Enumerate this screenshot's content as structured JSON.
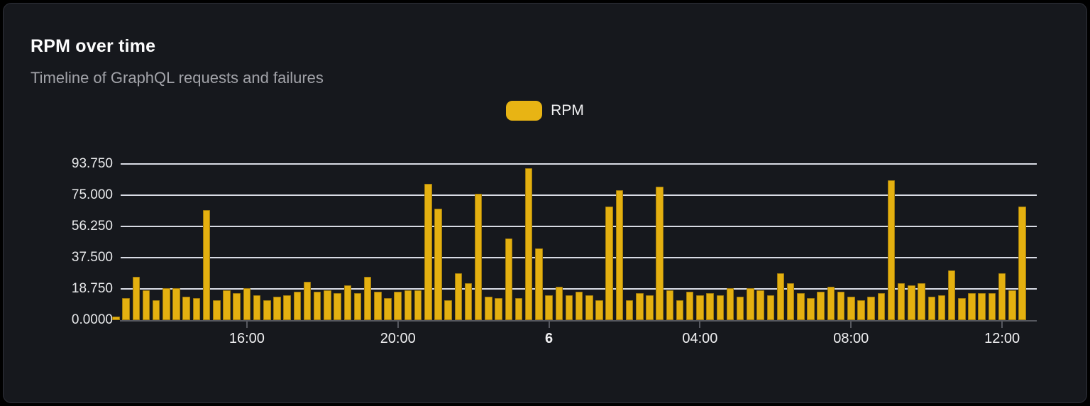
{
  "header": {
    "title": "RPM over time",
    "subtitle": "Timeline of GraphQL requests and failures"
  },
  "legend": {
    "items": [
      {
        "label": "RPM",
        "color": "#E8B414"
      }
    ]
  },
  "colors": {
    "page_bg": "#000000",
    "card_bg": "#16181D",
    "card_border": "#2E3039",
    "bar": "#E4B010",
    "gridline": "#D9DCE5",
    "axis": "#56585F",
    "title_text": "#FCFCFD",
    "subtitle_text": "#A2A3A9",
    "tick_text": "#E9EAEC"
  },
  "chart_data": {
    "type": "bar",
    "title": "RPM over time",
    "subtitle": "Timeline of GraphQL requests and failures",
    "xlabel": "",
    "ylabel": "",
    "grid": true,
    "legend_position": "top-center",
    "ylim": [
      0,
      98.9
    ],
    "y_ticks": [
      {
        "value": 0,
        "label": "0.0000"
      },
      {
        "value": 18.75,
        "label": "18.750"
      },
      {
        "value": 37.5,
        "label": "37.500"
      },
      {
        "value": 56.25,
        "label": "56.250"
      },
      {
        "value": 75,
        "label": "75.000"
      },
      {
        "value": 93.75,
        "label": "93.750"
      }
    ],
    "x_ticks": [
      {
        "index": 13,
        "label": "16:00",
        "bold": false
      },
      {
        "index": 28,
        "label": "20:00",
        "bold": false
      },
      {
        "index": 43,
        "label": "6",
        "bold": true
      },
      {
        "index": 58,
        "label": "04:00",
        "bold": false
      },
      {
        "index": 73,
        "label": "08:00",
        "bold": false
      },
      {
        "index": 88,
        "label": "12:00",
        "bold": false
      }
    ],
    "series": [
      {
        "name": "RPM",
        "values": [
          2,
          13,
          26,
          18,
          12,
          19,
          19,
          14,
          13,
          66,
          12,
          18,
          16,
          19,
          15,
          12,
          14,
          15,
          17,
          23,
          17,
          18,
          16,
          21,
          16,
          26,
          17,
          13,
          17,
          18,
          18,
          82,
          67,
          12,
          28,
          22,
          76,
          14,
          13,
          49,
          13,
          91,
          43,
          15,
          20,
          15,
          17,
          15,
          12,
          68,
          78,
          12,
          16,
          15,
          80,
          18,
          12,
          17,
          15,
          16,
          15,
          19,
          14,
          19,
          18,
          15,
          28,
          22,
          16,
          13,
          17,
          20,
          17,
          14,
          12,
          14,
          16,
          84,
          22,
          21,
          22,
          14,
          15,
          30,
          13,
          16,
          16,
          16,
          28,
          18,
          68
        ]
      }
    ]
  }
}
